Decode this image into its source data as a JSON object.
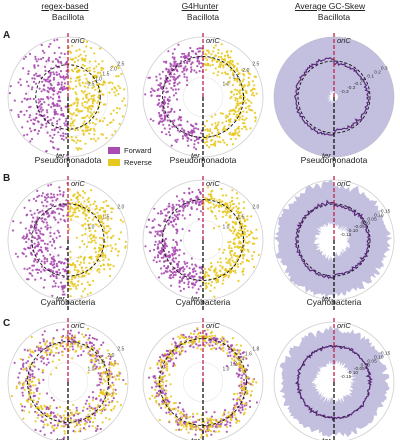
{
  "column_headers": [
    "regex-based",
    "G4Hunter",
    "Average GC-Skew"
  ],
  "row_letters": [
    "A",
    "B",
    "C"
  ],
  "legend": [
    {
      "label": "Forward",
      "color": "#a94bb0"
    },
    {
      "label": "Reverse",
      "color": "#e8c81e"
    }
  ],
  "colors": {
    "forward": "#a94bb0",
    "reverse": "#e8c81e",
    "skew_fill": "#b9b4d9",
    "skew_line": "#5a2a7a",
    "oric_line": "#c0244a",
    "ter_line": "#111111",
    "circle": "#111111"
  },
  "chart_data": [
    {
      "type": "scatter",
      "panel": "A-regex",
      "title": "Bacillota",
      "top_label": "oriC",
      "bottom_label": "ter",
      "radial_ticks": [
        "0.5",
        "1.0",
        "1.5",
        "2.0",
        "2.5"
      ],
      "series": [
        {
          "name": "Forward",
          "side": "left",
          "n": 300,
          "r_range": [
            0.2,
            2.6
          ]
        },
        {
          "name": "Reverse",
          "side": "right",
          "n": 300,
          "r_range": [
            0.2,
            2.6
          ]
        }
      ]
    },
    {
      "type": "scatter",
      "panel": "A-g4hunter",
      "title": "Bacillota",
      "top_label": "oriC",
      "bottom_label": "ter",
      "radial_ticks": [
        "1.0",
        "1.5",
        "2.0",
        "2.5"
      ],
      "series": [
        {
          "name": "Forward",
          "side": "left",
          "n": 320,
          "r_range": [
            1.0,
            2.0
          ]
        },
        {
          "name": "Reverse",
          "side": "right",
          "n": 320,
          "r_range": [
            1.0,
            2.0
          ]
        }
      ]
    },
    {
      "type": "area",
      "panel": "A-skew",
      "title": "Bacillota",
      "top_label": "oriC",
      "bottom_label": "ter",
      "radial_ticks": [
        "-0.3",
        "-0.2",
        "-0.1",
        "0",
        "0.1",
        "0.2",
        "0.3"
      ],
      "mean_shift": 0.06,
      "band": 0.22
    },
    {
      "type": "scatter",
      "panel": "B-regex",
      "title": "Pseudomonadota",
      "top_label": "oriC",
      "bottom_label": "ter",
      "radial_ticks": [
        "1.0",
        "1.5",
        "2.0"
      ],
      "series": [
        {
          "name": "Forward",
          "side": "left",
          "n": 320,
          "r_range": [
            0.6,
            2.1
          ]
        },
        {
          "name": "Reverse",
          "side": "right",
          "n": 320,
          "r_range": [
            0.6,
            2.1
          ]
        }
      ]
    },
    {
      "type": "scatter",
      "panel": "B-g4hunter",
      "title": "Pseudomonadota",
      "top_label": "oriC",
      "bottom_label": "ter",
      "radial_ticks": [
        "1.0",
        "1.5",
        "2.0"
      ],
      "series": [
        {
          "name": "Forward",
          "side": "left",
          "n": 340,
          "r_range": [
            1.0,
            2.0
          ]
        },
        {
          "name": "Reverse",
          "side": "right",
          "n": 340,
          "r_range": [
            1.0,
            2.0
          ]
        }
      ]
    },
    {
      "type": "area",
      "panel": "B-skew",
      "title": "Pseudomonadota",
      "top_label": "oriC",
      "bottom_label": "ter",
      "radial_ticks": [
        "-0.15",
        "-0.10",
        "-0.05",
        "0.00",
        "0.05",
        "0.10",
        "0.15"
      ],
      "mean_shift": 0.04,
      "band": 0.12
    },
    {
      "type": "scatter",
      "panel": "C-regex",
      "title": "Cyanobacteria",
      "top_label": "oriC",
      "bottom_label": "ter",
      "radial_ticks": [
        "1.0",
        "1.5",
        "2.0",
        "2.5"
      ],
      "series": [
        {
          "name": "Forward",
          "side": "both",
          "n": 320,
          "r_range": [
            1.0,
            2.0
          ]
        },
        {
          "name": "Reverse",
          "side": "both",
          "n": 320,
          "r_range": [
            1.0,
            2.0
          ]
        }
      ]
    },
    {
      "type": "scatter",
      "panel": "C-g4hunter",
      "title": "Cyanobacteria",
      "top_label": "oriC",
      "bottom_label": "ter",
      "radial_ticks": [
        "1.0",
        "1.2",
        "1.4",
        "1.6",
        "1.8"
      ],
      "series": [
        {
          "name": "Forward",
          "side": "both",
          "n": 360,
          "r_range": [
            1.2,
            1.8
          ]
        },
        {
          "name": "Reverse",
          "side": "both",
          "n": 360,
          "r_range": [
            1.2,
            1.8
          ]
        }
      ]
    },
    {
      "type": "area",
      "panel": "C-skew",
      "title": "Cyanobacteria",
      "top_label": "oriC",
      "bottom_label": "ter",
      "radial_ticks": [
        "-0.15",
        "-0.10",
        "-0.05",
        "0.00",
        "0.05",
        "0.10",
        "0.15"
      ],
      "mean_shift": 0.0,
      "band": 0.1
    }
  ]
}
